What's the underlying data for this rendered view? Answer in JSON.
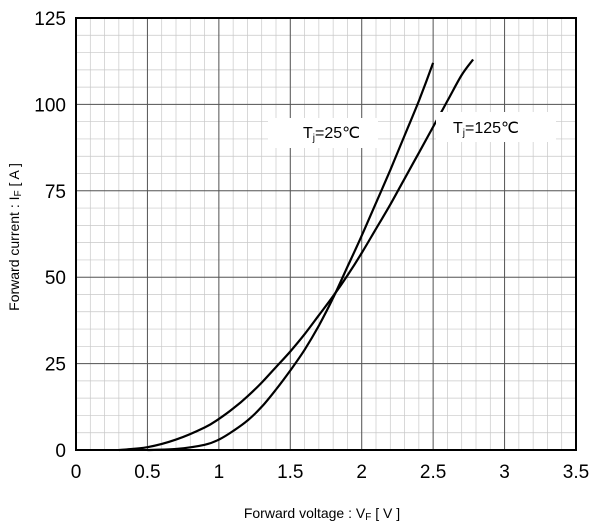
{
  "chart_data": {
    "type": "line",
    "xlabel": "Forward voltage  :  VF [ V ]",
    "xlabel_parts": {
      "pre": "Forward voltage  :  V",
      "sub": "F",
      "post": " [ V ]"
    },
    "ylabel": "Forward current : IF [ A ]",
    "ylabel_parts": {
      "pre": "Forward current : I",
      "sub": "F",
      "post": " [ A ]"
    },
    "xlim": [
      0,
      3.5
    ],
    "ylim": [
      0,
      125
    ],
    "x_ticks": [
      0,
      0.5,
      1,
      1.5,
      2,
      2.5,
      3,
      3.5
    ],
    "x_tick_labels": [
      "0",
      "0.5",
      "1",
      "1.5",
      "2",
      "2.5",
      "3",
      "3.5"
    ],
    "y_ticks": [
      0,
      25,
      50,
      75,
      100,
      125
    ],
    "y_tick_labels": [
      "0",
      "25",
      "50",
      "75",
      "100",
      "125"
    ],
    "minor_x_step": 0.1,
    "minor_y_step": 5,
    "grid": true,
    "series": [
      {
        "name": "Tj=25°C",
        "label_parts": {
          "pre": "T",
          "sub": "j",
          "post": "=25℃"
        },
        "color": "#000000",
        "x": [
          0.5,
          0.7,
          0.9,
          1.0,
          1.1,
          1.2,
          1.3,
          1.4,
          1.5,
          1.6,
          1.7,
          1.8,
          1.9,
          2.0,
          2.1,
          2.2,
          2.3,
          2.4,
          2.5
        ],
        "y": [
          0,
          0.3,
          1.5,
          3,
          5.5,
          8.5,
          12.5,
          17.5,
          23,
          29,
          36,
          44,
          53,
          62,
          71.5,
          81,
          91,
          101,
          112
        ]
      },
      {
        "name": "Tj=125°C",
        "label_parts": {
          "pre": "T",
          "sub": "j",
          "post": "=125℃"
        },
        "color": "#000000",
        "x": [
          0.3,
          0.5,
          0.7,
          0.9,
          1.0,
          1.1,
          1.2,
          1.3,
          1.4,
          1.5,
          1.6,
          1.7,
          1.8,
          1.9,
          2.0,
          2.1,
          2.2,
          2.3,
          2.4,
          2.5,
          2.6,
          2.7,
          2.78
        ],
        "y": [
          0,
          0.8,
          3,
          6.5,
          9,
          12,
          15.5,
          19.5,
          24,
          28.5,
          33.5,
          39,
          44.5,
          50.5,
          57,
          64,
          71,
          78.5,
          86,
          93.5,
          101,
          108.5,
          113
        ]
      }
    ]
  }
}
